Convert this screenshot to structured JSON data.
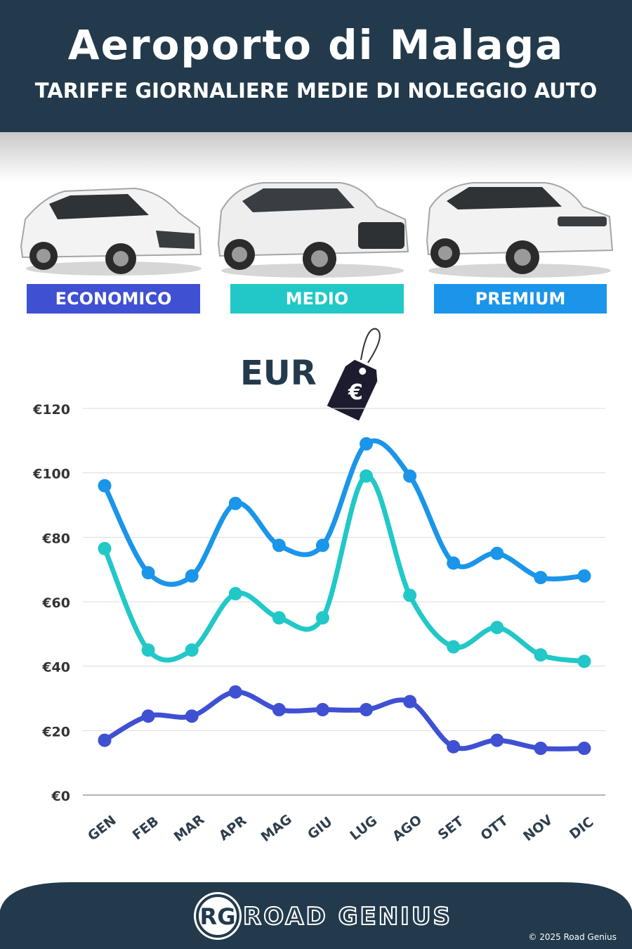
{
  "header": {
    "title": "Aeroporto di Malaga",
    "subtitle": "TARIFFE GIORNALIERE MEDIE DI NOLEGGIO AUTO"
  },
  "categories_badges": [
    {
      "label": "ECONOMICO",
      "color": "#3f50d3"
    },
    {
      "label": "MEDIO",
      "color": "#21c8c7"
    },
    {
      "label": "PREMIUM",
      "color": "#1a95ea"
    }
  ],
  "currency_label": "EUR",
  "price_tag_symbol": "€",
  "chart_data": {
    "type": "line",
    "title": "",
    "xlabel": "",
    "ylabel": "",
    "categories": [
      "GEN",
      "FEB",
      "MAR",
      "APR",
      "MAG",
      "GIU",
      "LUG",
      "AGO",
      "SET",
      "OTT",
      "NOV",
      "DIC"
    ],
    "series": [
      {
        "name": "PREMIUM",
        "color": "#1a95ea",
        "values": [
          96,
          69,
          68,
          90.5,
          77.5,
          77.5,
          109,
          99,
          72,
          75,
          67.5,
          68
        ]
      },
      {
        "name": "MEDIO",
        "color": "#21c8c7",
        "values": [
          76.5,
          45,
          45,
          62.5,
          55,
          55,
          99,
          62,
          46,
          52,
          43.5,
          41.5
        ]
      },
      {
        "name": "ECONOMICO",
        "color": "#3f50d3",
        "values": [
          17,
          24.5,
          24.5,
          32,
          26.5,
          26.5,
          26.5,
          29,
          15,
          17,
          14.5,
          14.5
        ]
      }
    ],
    "ylim": [
      0,
      120
    ],
    "yticks": [
      "€0",
      "€20",
      "€40",
      "€60",
      "€80",
      "€100",
      "€120"
    ],
    "ytick_values": [
      0,
      20,
      40,
      60,
      80,
      100,
      120
    ],
    "grid": true,
    "legend": "top"
  },
  "footer": {
    "logo_text": "RG",
    "brand": "ROAD GENIUS",
    "copyright": "© 2025 Road Genius"
  }
}
